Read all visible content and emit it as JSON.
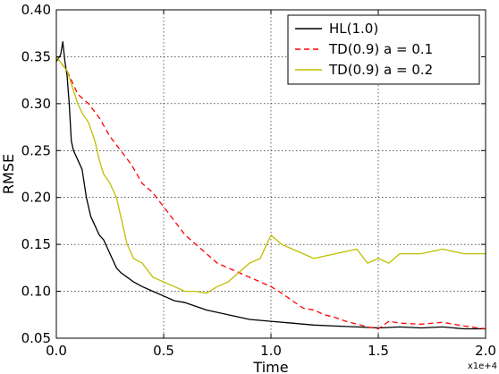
{
  "chart_data": {
    "type": "line",
    "xlabel": "Time",
    "ylabel": "RMSE",
    "x_offset_label": "x1e+4",
    "xlim": [
      0.0,
      2.0
    ],
    "ylim": [
      0.05,
      0.4
    ],
    "xticks": [
      0.0,
      0.5,
      1.0,
      1.5,
      2.0
    ],
    "xtick_labels": [
      "0.0",
      "0.5",
      "1.0",
      "1.5",
      "2.0"
    ],
    "yticks": [
      0.05,
      0.1,
      0.15,
      0.2,
      0.25,
      0.3,
      0.35,
      0.4
    ],
    "ytick_labels": [
      "0.05",
      "0.10",
      "0.15",
      "0.20",
      "0.25",
      "0.30",
      "0.35",
      "0.40"
    ],
    "grid": true,
    "legend_position": "top-right",
    "series": [
      {
        "name": "HL(1.0)",
        "color": "#000000",
        "dash": "solid",
        "x": [
          0.0,
          0.02,
          0.03,
          0.04,
          0.05,
          0.06,
          0.07,
          0.08,
          0.09,
          0.1,
          0.12,
          0.14,
          0.16,
          0.18,
          0.2,
          0.22,
          0.25,
          0.28,
          0.3,
          0.33,
          0.36,
          0.4,
          0.45,
          0.5,
          0.55,
          0.6,
          0.7,
          0.8,
          0.9,
          1.0,
          1.1,
          1.2,
          1.3,
          1.4,
          1.5,
          1.6,
          1.7,
          1.8,
          1.9,
          2.0
        ],
        "y": [
          0.345,
          0.352,
          0.366,
          0.345,
          0.33,
          0.3,
          0.26,
          0.25,
          0.245,
          0.24,
          0.23,
          0.2,
          0.18,
          0.17,
          0.16,
          0.155,
          0.14,
          0.125,
          0.12,
          0.115,
          0.11,
          0.105,
          0.1,
          0.095,
          0.09,
          0.088,
          0.08,
          0.075,
          0.07,
          0.068,
          0.066,
          0.064,
          0.063,
          0.062,
          0.061,
          0.062,
          0.061,
          0.062,
          0.06,
          0.06
        ]
      },
      {
        "name": "TD(0.9) a = 0.1",
        "color": "#ff0000",
        "dash": "dashed",
        "x": [
          0.0,
          0.05,
          0.1,
          0.15,
          0.2,
          0.25,
          0.3,
          0.35,
          0.4,
          0.45,
          0.5,
          0.55,
          0.6,
          0.65,
          0.7,
          0.75,
          0.8,
          0.85,
          0.9,
          0.95,
          1.0,
          1.05,
          1.1,
          1.15,
          1.2,
          1.25,
          1.3,
          1.35,
          1.4,
          1.45,
          1.5,
          1.55,
          1.6,
          1.7,
          1.8,
          1.9,
          2.0
        ],
        "y": [
          0.35,
          0.335,
          0.31,
          0.3,
          0.285,
          0.265,
          0.25,
          0.235,
          0.215,
          0.205,
          0.19,
          0.175,
          0.16,
          0.15,
          0.14,
          0.13,
          0.125,
          0.12,
          0.115,
          0.11,
          0.105,
          0.098,
          0.09,
          0.082,
          0.08,
          0.075,
          0.072,
          0.068,
          0.065,
          0.062,
          0.06,
          0.068,
          0.066,
          0.065,
          0.067,
          0.063,
          0.06
        ]
      },
      {
        "name": "TD(0.9) a = 0.2",
        "color": "#bfbf00",
        "dash": "solid",
        "x": [
          0.0,
          0.05,
          0.1,
          0.12,
          0.15,
          0.18,
          0.2,
          0.22,
          0.25,
          0.28,
          0.3,
          0.33,
          0.36,
          0.4,
          0.45,
          0.5,
          0.55,
          0.6,
          0.65,
          0.7,
          0.75,
          0.8,
          0.85,
          0.9,
          0.95,
          1.0,
          1.05,
          1.1,
          1.15,
          1.2,
          1.3,
          1.4,
          1.45,
          1.5,
          1.55,
          1.6,
          1.7,
          1.8,
          1.9,
          2.0
        ],
        "y": [
          0.35,
          0.335,
          0.3,
          0.29,
          0.28,
          0.26,
          0.24,
          0.225,
          0.215,
          0.2,
          0.18,
          0.15,
          0.135,
          0.13,
          0.115,
          0.11,
          0.105,
          0.1,
          0.1,
          0.098,
          0.105,
          0.11,
          0.12,
          0.13,
          0.135,
          0.16,
          0.15,
          0.145,
          0.14,
          0.135,
          0.14,
          0.145,
          0.13,
          0.135,
          0.13,
          0.14,
          0.14,
          0.145,
          0.14,
          0.14
        ]
      }
    ]
  }
}
